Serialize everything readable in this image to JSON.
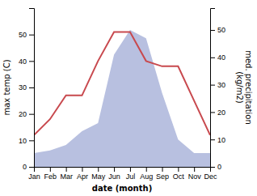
{
  "chart_data": {
    "type": "line",
    "categories": [
      "Jan",
      "Feb",
      "Mar",
      "Apr",
      "May",
      "Jun",
      "Jul",
      "Aug",
      "Sep",
      "Oct",
      "Nov",
      "Dec"
    ],
    "x_label": "date (month)",
    "y_label": "max temp (C)",
    "y2_label": "med. precipitation\n(kg/m2)",
    "series": [
      {
        "type": "line",
        "color": "#c8494e",
        "values": [
          12,
          18,
          27,
          27,
          40,
          51,
          51,
          40,
          38,
          38,
          25,
          12
        ]
      },
      {
        "type": "area",
        "color": "#b8c0e0",
        "axis": "y2",
        "values": [
          5,
          6,
          8,
          13,
          16,
          41,
          50,
          47,
          27,
          10,
          5,
          5
        ]
      }
    ],
    "ylim": [
      0,
      60
    ],
    "yticks": [
      0,
      10,
      20,
      30,
      40,
      50
    ],
    "y2lim": [
      0,
      58
    ],
    "y2ticks": [
      0,
      10,
      20,
      30,
      40,
      50
    ]
  }
}
